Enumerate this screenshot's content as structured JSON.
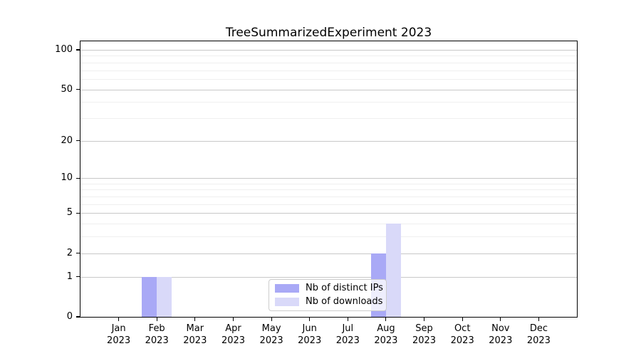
{
  "figure": {
    "background": "#ffffff"
  },
  "chart_data": {
    "type": "bar",
    "title": "TreeSummarizedExperiment 2023",
    "categories": [
      "Jan",
      "Feb",
      "Mar",
      "Apr",
      "May",
      "Jun",
      "Jul",
      "Aug",
      "Sep",
      "Oct",
      "Nov",
      "Dec"
    ],
    "category_year": "2023",
    "series": [
      {
        "name": "Nb of distinct IPs",
        "color": "#a9a9f6",
        "values": [
          0,
          1,
          0,
          0,
          0,
          0,
          0,
          2,
          0,
          0,
          0,
          0
        ]
      },
      {
        "name": "Nb of downloads",
        "color": "#d9d9f9",
        "values": [
          0,
          1,
          0,
          0,
          0,
          0,
          0,
          4,
          0,
          0,
          0,
          0
        ]
      }
    ],
    "scale": "log1p",
    "ylim": [
      0,
      116
    ],
    "y_ticks": [
      0,
      1,
      2,
      5,
      10,
      20,
      50,
      100
    ],
    "y_minor_gridlines": [
      3,
      4,
      6,
      7,
      8,
      9,
      30,
      40,
      60,
      70,
      80,
      90
    ],
    "grid": true,
    "legend_position": "inside-bottom-center",
    "colors": {
      "major_grid": "#c8c8c8",
      "minor_grid": "#efefef",
      "axis": "#000000",
      "text": "#000000"
    }
  }
}
